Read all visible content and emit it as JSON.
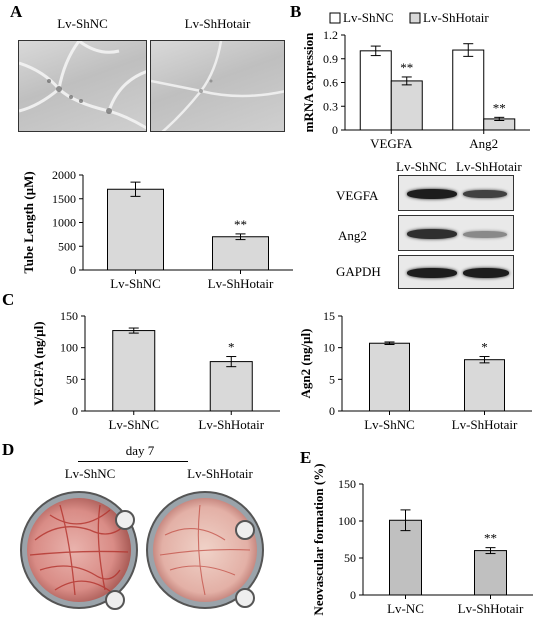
{
  "panels": {
    "a": {
      "letter": "A",
      "photo_labels": [
        "Lv-ShNC",
        "Lv-ShHotair"
      ]
    },
    "b": {
      "letter": "B"
    },
    "c": {
      "letter": "C"
    },
    "d": {
      "letter": "D",
      "day_label": "day 7",
      "dish_labels": [
        "Lv-ShNC",
        "Lv-ShHotair"
      ]
    },
    "e": {
      "letter": "E"
    }
  },
  "blot": {
    "headers": [
      "Lv-ShNC",
      "Lv-ShHotair"
    ],
    "rows": [
      {
        "label": "VEGFA",
        "intensity": [
          0.95,
          0.75
        ]
      },
      {
        "label": "Ang2",
        "intensity": [
          0.85,
          0.35
        ]
      },
      {
        "label": "GAPDH",
        "intensity": [
          0.95,
          0.95
        ]
      }
    ]
  },
  "colors": {
    "bar_gray": "#d9d9d9",
    "bar_white": "#ffffff",
    "axis": "#000000",
    "bar_gray_e": "#c0c0c0"
  },
  "chart_data": [
    {
      "id": "tube-length",
      "type": "bar",
      "categories": [
        "Lv-ShNC",
        "Lv-ShHotair"
      ],
      "values": [
        1700,
        700
      ],
      "errors": [
        150,
        60
      ],
      "significance": [
        "",
        "**"
      ],
      "ylabel": "Tube Length (µM)",
      "ylim": [
        0,
        2000
      ],
      "yticks": [
        0,
        500,
        1000,
        1500,
        2000
      ]
    },
    {
      "id": "mrna-expression",
      "type": "bar",
      "categories": [
        "VEGFA",
        "Ang2"
      ],
      "series": [
        {
          "name": "Lv-ShNC",
          "values": [
            1.0,
            1.01
          ],
          "errors": [
            0.06,
            0.08
          ],
          "significance": [
            "",
            ""
          ]
        },
        {
          "name": "Lv-ShHotair",
          "values": [
            0.62,
            0.14
          ],
          "errors": [
            0.05,
            0.02
          ],
          "significance": [
            "**",
            "**"
          ]
        }
      ],
      "ylabel": "mRNA expression",
      "ylim": [
        0,
        1.2
      ],
      "yticks": [
        "0",
        "0.3",
        "0.6",
        "0.9",
        "1.2"
      ],
      "legend": "top"
    },
    {
      "id": "vegfa-elisa",
      "type": "bar",
      "categories": [
        "Lv-ShNC",
        "Lv-ShHotair"
      ],
      "values": [
        127,
        78
      ],
      "errors": [
        4,
        8
      ],
      "significance": [
        "",
        "*"
      ],
      "ylabel": "VEGFA (ng/µl)",
      "ylim": [
        0,
        150
      ],
      "yticks": [
        0,
        50,
        100,
        150
      ]
    },
    {
      "id": "ang2-elisa",
      "type": "bar",
      "categories": [
        "Lv-ShNC",
        "Lv-ShHotair"
      ],
      "values": [
        10.7,
        8.1
      ],
      "errors": [
        0.2,
        0.5
      ],
      "significance": [
        "",
        "*"
      ],
      "ylabel": "Agn2 (ng/µl)",
      "ylim": [
        0,
        15
      ],
      "yticks": [
        0,
        5,
        10,
        15
      ]
    },
    {
      "id": "neovascular",
      "type": "bar",
      "categories": [
        "Lv-NC",
        "Lv-ShHotair"
      ],
      "values": [
        101,
        60
      ],
      "errors": [
        14,
        4
      ],
      "significance": [
        "",
        "**"
      ],
      "ylabel": "Neovascular formation (%)",
      "ylim": [
        0,
        150
      ],
      "yticks": [
        0,
        50,
        100,
        150
      ]
    }
  ]
}
